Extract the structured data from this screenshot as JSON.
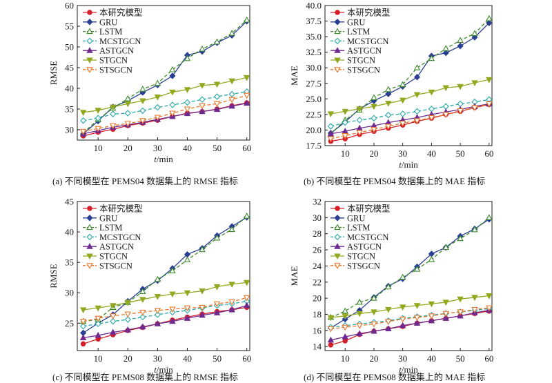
{
  "colors": {
    "本研究模型": "#d4202a",
    "GRU": "#2a3f93",
    "LSTM": "#3a8a2a",
    "MCSTGCN": "#27a9a8",
    "ASTGCN": "#6e2a90",
    "STGCN": "#92a81f",
    "STSGCN": "#e8772a",
    "axis": "#1a1a1a"
  },
  "series_style": {
    "本研究模型": {
      "marker": "circle",
      "dash": "solid",
      "filled": true
    },
    "GRU": {
      "marker": "diamond",
      "dash": "solid",
      "filled": true
    },
    "LSTM": {
      "marker": "triangle-up",
      "dash": "dashed",
      "filled": false
    },
    "MCSTGCN": {
      "marker": "diamond",
      "dash": "dashed",
      "filled": false
    },
    "ASTGCN": {
      "marker": "triangle-up",
      "dash": "solid",
      "filled": true
    },
    "STGCN": {
      "marker": "triangle-down",
      "dash": "solid",
      "filled": true
    },
    "STSGCN": {
      "marker": "triangle-down",
      "dash": "dashed",
      "filled": false
    }
  },
  "chart_data": [
    {
      "type": "line",
      "caption": "(a) 不同模型在 PEMS04 数据集上的 RMSE 指标",
      "xlabel_var": "t",
      "xlabel_unit": "/min",
      "ylabel": "RMSE",
      "x": [
        5,
        10,
        15,
        20,
        25,
        30,
        35,
        40,
        45,
        50,
        55,
        60
      ],
      "xticks": [
        10,
        20,
        30,
        40,
        50,
        60
      ],
      "xlim": [
        3,
        61
      ],
      "ylim": [
        27.5,
        60
      ],
      "yticks": [
        30,
        35,
        40,
        45,
        50,
        55,
        60
      ],
      "ytick_decimals": 0,
      "legend_position": "top-left",
      "series": [
        {
          "name": "本研究模型",
          "values": [
            28.5,
            29.4,
            30.1,
            31.0,
            31.6,
            32.3,
            33.2,
            34.0,
            34.4,
            35.0,
            35.8,
            36.5
          ]
        },
        {
          "name": "GRU",
          "values": [
            29.0,
            32.1,
            35.5,
            37.0,
            39.0,
            40.8,
            43.0,
            48.0,
            48.9,
            51.0,
            52.8,
            56.2
          ]
        },
        {
          "name": "LSTM",
          "values": [
            29.2,
            32.5,
            35.2,
            37.5,
            39.8,
            41.2,
            44.5,
            47.2,
            49.5,
            51.2,
            53.3,
            56.5
          ]
        },
        {
          "name": "MCSTGCN",
          "values": [
            32.2,
            32.8,
            33.8,
            34.0,
            34.6,
            35.4,
            36.0,
            36.6,
            37.3,
            38.0,
            38.6,
            39.2
          ]
        },
        {
          "name": "ASTGCN",
          "values": [
            29.0,
            29.8,
            30.6,
            31.2,
            31.8,
            32.5,
            33.2,
            33.9,
            34.4,
            34.9,
            35.7,
            36.4
          ]
        },
        {
          "name": "STGCN",
          "values": [
            34.2,
            34.7,
            35.5,
            36.3,
            37.0,
            37.9,
            39.1,
            39.7,
            40.7,
            41.0,
            41.8,
            42.6
          ]
        },
        {
          "name": "STSGCN",
          "values": [
            29.6,
            30.3,
            31.0,
            31.5,
            32.2,
            33.0,
            34.0,
            35.0,
            35.8,
            36.3,
            37.3,
            38.3
          ]
        }
      ]
    },
    {
      "type": "line",
      "caption": "(b) 不同模型在 PEMS04 数据集上的 MAE 指标",
      "xlabel_var": "t",
      "xlabel_unit": "/min",
      "ylabel": "MAE",
      "x": [
        5,
        10,
        15,
        20,
        25,
        30,
        35,
        40,
        45,
        50,
        55,
        60
      ],
      "xticks": [
        10,
        20,
        30,
        40,
        50,
        60
      ],
      "xlim": [
        3,
        61
      ],
      "ylim": [
        17.5,
        40
      ],
      "yticks": [
        17.5,
        20.0,
        22.5,
        25.0,
        27.5,
        30.0,
        32.5,
        35.0,
        37.5,
        40.0
      ],
      "ytick_decimals": 1,
      "legend_position": "top-left",
      "series": [
        {
          "name": "本研究模型",
          "values": [
            18.2,
            18.6,
            19.3,
            19.8,
            20.3,
            20.8,
            21.4,
            21.9,
            22.5,
            23.0,
            23.6,
            24.1
          ]
        },
        {
          "name": "GRU",
          "values": [
            19.5,
            21.3,
            23.4,
            24.7,
            25.8,
            27.0,
            28.5,
            31.9,
            32.4,
            33.5,
            34.9,
            37.2
          ]
        },
        {
          "name": "LSTM",
          "values": [
            19.4,
            21.6,
            23.2,
            25.2,
            26.5,
            27.3,
            30.0,
            31.5,
            33.1,
            34.4,
            35.5,
            37.9
          ]
        },
        {
          "name": "MCSTGCN",
          "values": [
            20.6,
            21.2,
            21.6,
            21.9,
            22.4,
            22.6,
            23.0,
            23.4,
            23.8,
            24.2,
            24.5,
            24.9
          ]
        },
        {
          "name": "ASTGCN",
          "values": [
            19.4,
            19.8,
            20.3,
            20.7,
            21.2,
            21.6,
            22.0,
            22.5,
            22.9,
            23.3,
            23.8,
            24.2
          ]
        },
        {
          "name": "STGCN",
          "values": [
            22.6,
            23.0,
            23.4,
            23.8,
            24.3,
            24.8,
            25.7,
            26.1,
            26.8,
            27.0,
            27.6,
            28.1
          ]
        },
        {
          "name": "STSGCN",
          "values": [
            18.6,
            19.1,
            19.6,
            20.1,
            20.6,
            21.1,
            21.5,
            22.0,
            22.5,
            23.1,
            23.6,
            24.2
          ]
        }
      ]
    },
    {
      "type": "line",
      "caption": "(c) 不同模型在 PEMS08 数据集上的 RMSE 指标",
      "xlabel_var": "t",
      "xlabel_unit": "/min",
      "ylabel": "RMSE",
      "x": [
        5,
        10,
        15,
        20,
        25,
        30,
        35,
        40,
        45,
        50,
        55,
        60
      ],
      "xticks": [
        10,
        20,
        30,
        40,
        50,
        60
      ],
      "xlim": [
        3,
        61
      ],
      "ylim": [
        20.5,
        45
      ],
      "yticks": [
        25,
        30,
        35,
        40,
        45
      ],
      "ytick_decimals": 0,
      "legend_position": "top-left",
      "series": [
        {
          "name": "本研究模型",
          "values": [
            21.6,
            22.4,
            23.1,
            23.8,
            24.3,
            24.9,
            25.5,
            26.0,
            26.5,
            26.9,
            27.2,
            27.6
          ]
        },
        {
          "name": "GRU",
          "values": [
            23.4,
            25.0,
            26.4,
            28.6,
            30.6,
            32.0,
            34.0,
            36.3,
            37.3,
            39.4,
            40.9,
            42.4
          ]
        },
        {
          "name": "LSTM",
          "values": [
            25.3,
            25.6,
            27.6,
            28.4,
            30.2,
            32.2,
            33.6,
            35.4,
            37.1,
            39.0,
            40.4,
            42.6
          ]
        },
        {
          "name": "MCSTGCN",
          "values": [
            24.5,
            24.9,
            25.3,
            25.6,
            26.0,
            26.4,
            26.8,
            27.1,
            27.5,
            27.9,
            28.2,
            28.6
          ]
        },
        {
          "name": "ASTGCN",
          "values": [
            22.6,
            23.0,
            23.5,
            23.9,
            24.4,
            24.9,
            25.3,
            25.8,
            26.3,
            26.7,
            27.2,
            27.9
          ]
        },
        {
          "name": "STGCN",
          "values": [
            27.2,
            27.5,
            27.9,
            28.4,
            28.9,
            29.4,
            29.8,
            30.0,
            30.3,
            31.0,
            31.4,
            31.7
          ]
        },
        {
          "name": "STSGCN",
          "values": [
            25.3,
            25.8,
            26.2,
            26.5,
            26.8,
            27.1,
            27.3,
            27.5,
            27.6,
            28.2,
            28.5,
            29.2
          ]
        }
      ]
    },
    {
      "type": "line",
      "caption": "(d) 不同模型在 PEMS08 数据集上的 MAE 指标",
      "xlabel_var": "t",
      "xlabel_unit": "/min",
      "ylabel": "MAE",
      "x": [
        5,
        10,
        15,
        20,
        25,
        30,
        35,
        40,
        45,
        50,
        55,
        60
      ],
      "xticks": [
        10,
        20,
        30,
        40,
        50,
        60
      ],
      "xlim": [
        3,
        61
      ],
      "ylim": [
        13.5,
        32
      ],
      "yticks": [
        14,
        16,
        18,
        20,
        22,
        24,
        26,
        28,
        30,
        32
      ],
      "ytick_decimals": 0,
      "legend_position": "top-left",
      "series": [
        {
          "name": "本研究模型",
          "values": [
            14.2,
            14.7,
            15.5,
            15.9,
            16.2,
            16.5,
            16.9,
            17.2,
            17.5,
            17.8,
            18.1,
            18.4
          ]
        },
        {
          "name": "GRU",
          "values": [
            16.3,
            17.4,
            18.5,
            20.1,
            21.5,
            22.4,
            23.9,
            25.5,
            26.3,
            27.7,
            28.6,
            29.8
          ]
        },
        {
          "name": "LSTM",
          "values": [
            17.6,
            18.4,
            19.5,
            20.0,
            21.4,
            22.6,
            23.6,
            24.8,
            26.3,
            27.4,
            28.5,
            30.0
          ]
        },
        {
          "name": "MCSTGCN",
          "values": [
            16.4,
            16.6,
            16.8,
            17.0,
            17.2,
            17.5,
            17.7,
            17.9,
            18.1,
            18.3,
            18.5,
            18.7
          ]
        },
        {
          "name": "ASTGCN",
          "values": [
            14.8,
            15.2,
            15.6,
            15.9,
            16.2,
            16.6,
            16.9,
            17.2,
            17.5,
            17.8,
            18.2,
            18.5
          ]
        },
        {
          "name": "STGCN",
          "values": [
            17.6,
            17.8,
            18.1,
            18.3,
            18.6,
            18.9,
            19.1,
            19.3,
            19.5,
            19.9,
            20.1,
            20.3
          ]
        },
        {
          "name": "STSGCN",
          "values": [
            16.2,
            16.4,
            16.6,
            16.8,
            17.1,
            17.4,
            17.6,
            17.8,
            18.1,
            18.3,
            18.6,
            18.8
          ]
        }
      ]
    }
  ]
}
